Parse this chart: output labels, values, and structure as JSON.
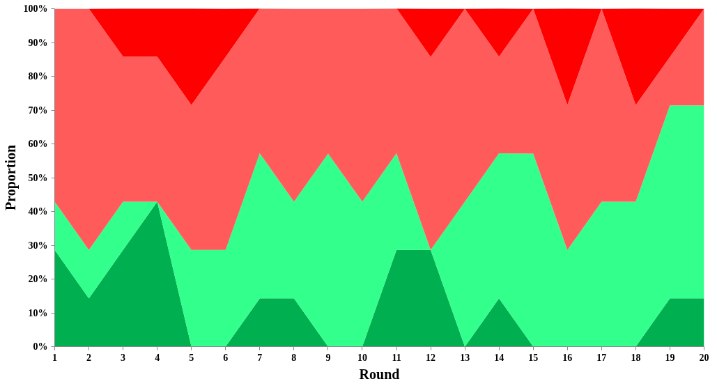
{
  "chart_data": {
    "type": "area",
    "stacked": true,
    "xlabel": "Round",
    "ylabel": "Proportion",
    "x": [
      1,
      2,
      3,
      4,
      5,
      6,
      7,
      8,
      9,
      10,
      11,
      12,
      13,
      14,
      15,
      16,
      17,
      18,
      19,
      20
    ],
    "xlim": [
      1,
      20
    ],
    "xticks": [
      1,
      2,
      3,
      4,
      5,
      6,
      7,
      8,
      9,
      10,
      11,
      12,
      13,
      14,
      15,
      16,
      17,
      18,
      19,
      20
    ],
    "ylim": [
      0,
      100
    ],
    "yticks": [
      {
        "value": 0,
        "label": "0%"
      },
      {
        "value": 10,
        "label": "10%"
      },
      {
        "value": 20,
        "label": "20%"
      },
      {
        "value": 30,
        "label": "30%"
      },
      {
        "value": 40,
        "label": "40%"
      },
      {
        "value": 50,
        "label": "50%"
      },
      {
        "value": 60,
        "label": "60%"
      },
      {
        "value": 70,
        "label": "70%"
      },
      {
        "value": 80,
        "label": "80%"
      },
      {
        "value": 90,
        "label": "90%"
      },
      {
        "value": 100,
        "label": "100%"
      }
    ],
    "grid": false,
    "series": [
      {
        "color": "#00b050",
        "values": [
          28.6,
          14.3,
          28.6,
          42.9,
          0,
          0,
          14.3,
          14.3,
          0,
          0,
          28.6,
          28.6,
          0,
          14.3,
          0,
          0,
          0,
          0,
          14.3,
          14.3
        ]
      },
      {
        "color": "#33ff8c",
        "values": [
          14.3,
          14.3,
          14.3,
          0,
          28.6,
          28.6,
          42.9,
          28.6,
          57.1,
          42.9,
          28.6,
          0,
          42.9,
          42.9,
          57.1,
          28.6,
          42.9,
          42.9,
          57.1,
          57.1
        ]
      },
      {
        "color": "#ff5b5b",
        "values": [
          57.1,
          71.4,
          42.9,
          42.9,
          42.9,
          57.1,
          42.9,
          57.1,
          42.9,
          57.1,
          42.9,
          57.1,
          57.1,
          28.6,
          42.9,
          42.9,
          57.1,
          28.6,
          14.3,
          28.6
        ]
      },
      {
        "color": "#ff0000",
        "values": [
          0,
          0,
          14.3,
          14.3,
          28.6,
          14.3,
          0,
          0,
          0,
          0,
          0,
          14.3,
          0,
          14.3,
          0,
          28.6,
          0,
          28.6,
          14.3,
          0
        ]
      }
    ]
  }
}
